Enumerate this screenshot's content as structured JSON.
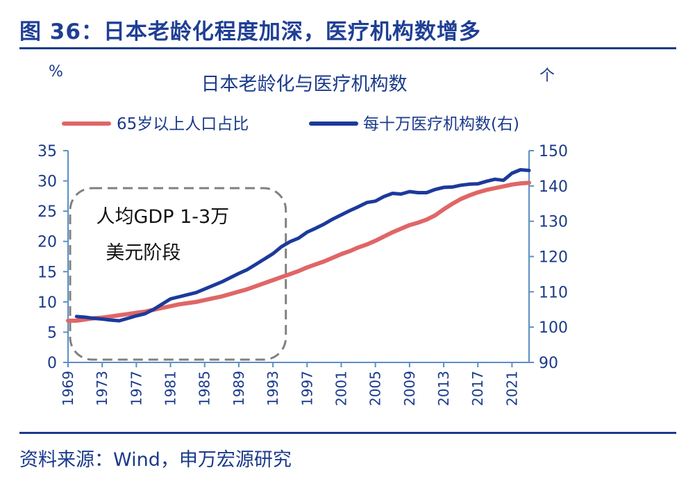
{
  "figure": {
    "title": "图 36：日本老龄化程度加深，医疗机构数增多",
    "source": "资料来源：Wind，申万宏源研究"
  },
  "chart_data": {
    "type": "line",
    "title": "日本老龄化与医疗机构数",
    "y_left_unit": "%",
    "y_right_unit": "个",
    "ylim_left": [
      0,
      35
    ],
    "ylim_right": [
      90,
      150
    ],
    "y_left_ticks": [
      "0",
      "5",
      "10",
      "15",
      "20",
      "25",
      "30",
      "35"
    ],
    "y_right_ticks": [
      "90",
      "100",
      "110",
      "120",
      "130",
      "140",
      "150"
    ],
    "x_ticks": [
      "1969",
      "1973",
      "1977",
      "1981",
      "1985",
      "1989",
      "1993",
      "1997",
      "2001",
      "2005",
      "2009",
      "2013",
      "2017",
      "2021"
    ],
    "x_range": [
      1969,
      2023
    ],
    "legend_position": "top",
    "annotation": {
      "line1": "人均GDP 1-3万",
      "line2": "美元阶段",
      "x_start": 1969,
      "x_end": 1995
    },
    "series": [
      {
        "name": "65岁以上人口占比",
        "axis": "left",
        "color": "#e06666",
        "x": [
          1969,
          1970,
          1971,
          1972,
          1973,
          1974,
          1975,
          1976,
          1977,
          1978,
          1979,
          1980,
          1981,
          1982,
          1983,
          1984,
          1985,
          1986,
          1987,
          1988,
          1989,
          1990,
          1991,
          1992,
          1993,
          1994,
          1995,
          1996,
          1997,
          1998,
          1999,
          2000,
          2001,
          2002,
          2003,
          2004,
          2005,
          2006,
          2007,
          2008,
          2009,
          2010,
          2011,
          2012,
          2013,
          2014,
          2015,
          2016,
          2017,
          2018,
          2019,
          2020,
          2021,
          2022,
          2023
        ],
        "values": [
          6.9,
          6.9,
          7.1,
          7.3,
          7.4,
          7.6,
          7.8,
          8.0,
          8.2,
          8.4,
          8.7,
          9.0,
          9.3,
          9.6,
          9.8,
          10.0,
          10.3,
          10.6,
          10.9,
          11.3,
          11.7,
          12.1,
          12.6,
          13.1,
          13.6,
          14.1,
          14.6,
          15.1,
          15.7,
          16.2,
          16.7,
          17.3,
          17.9,
          18.4,
          19.0,
          19.5,
          20.1,
          20.8,
          21.5,
          22.1,
          22.7,
          23.1,
          23.6,
          24.3,
          25.3,
          26.2,
          27.0,
          27.6,
          28.1,
          28.5,
          28.8,
          29.1,
          29.4,
          29.6,
          29.7
        ]
      },
      {
        "name": "每十万医疗机构数(右)",
        "axis": "right",
        "color": "#1c3a9a",
        "x": [
          1970,
          1971,
          1972,
          1973,
          1974,
          1975,
          1976,
          1977,
          1978,
          1979,
          1980,
          1981,
          1982,
          1983,
          1984,
          1985,
          1986,
          1987,
          1988,
          1989,
          1990,
          1991,
          1992,
          1993,
          1994,
          1995,
          1996,
          1997,
          1998,
          1999,
          2000,
          2001,
          2002,
          2003,
          2004,
          2005,
          2006,
          2007,
          2008,
          2009,
          2010,
          2011,
          2012,
          2013,
          2014,
          2015,
          2016,
          2017,
          2018,
          2019,
          2020,
          2021,
          2022,
          2023
        ],
        "values": [
          103.0,
          102.8,
          102.5,
          102.3,
          102.0,
          101.8,
          102.5,
          103.2,
          103.8,
          105.0,
          106.5,
          108.0,
          108.6,
          109.2,
          109.8,
          110.8,
          111.8,
          112.8,
          114.0,
          115.2,
          116.3,
          117.8,
          119.3,
          120.8,
          122.8,
          124.2,
          125.2,
          126.9,
          128.0,
          129.2,
          130.6,
          131.8,
          133.0,
          134.1,
          135.3,
          135.7,
          137.0,
          137.9,
          137.7,
          138.4,
          138.1,
          138.1,
          139.0,
          139.6,
          139.7,
          140.2,
          140.5,
          140.6,
          141.3,
          141.9,
          141.6,
          143.6,
          144.6,
          144.4
        ]
      }
    ]
  }
}
